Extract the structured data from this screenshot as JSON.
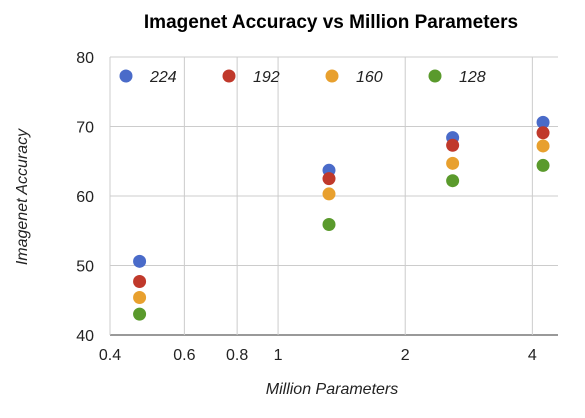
{
  "chart_data": {
    "type": "scatter",
    "title": "Imagenet Accuracy vs Million Parameters",
    "xlabel": "Million Parameters",
    "ylabel": "Imagenet Accuracy",
    "x_scale": "log",
    "xlim": [
      0.4,
      4.6
    ],
    "ylim": [
      40,
      80
    ],
    "x_ticks": [
      0.4,
      0.6,
      0.8,
      1,
      2,
      4
    ],
    "x_tick_labels": [
      "0.4",
      "0.6",
      "0.8",
      "1",
      "2",
      "4"
    ],
    "y_ticks": [
      40,
      50,
      60,
      70,
      80
    ],
    "y_tick_labels": [
      "40",
      "50",
      "60",
      "70",
      "80"
    ],
    "grid": true,
    "legend_position": "top",
    "x": [
      0.47,
      1.32,
      2.59,
      4.24
    ],
    "series": [
      {
        "name": "224",
        "color": "#4a6bc9",
        "values": [
          50.6,
          63.7,
          68.4,
          70.6
        ]
      },
      {
        "name": "192",
        "color": "#c0392b",
        "values": [
          47.7,
          62.5,
          67.3,
          69.1
        ]
      },
      {
        "name": "160",
        "color": "#e8a02e",
        "values": [
          45.4,
          60.3,
          64.7,
          67.2
        ]
      },
      {
        "name": "128",
        "color": "#5a9a2c",
        "values": [
          43.0,
          55.9,
          62.2,
          64.4
        ]
      }
    ]
  }
}
